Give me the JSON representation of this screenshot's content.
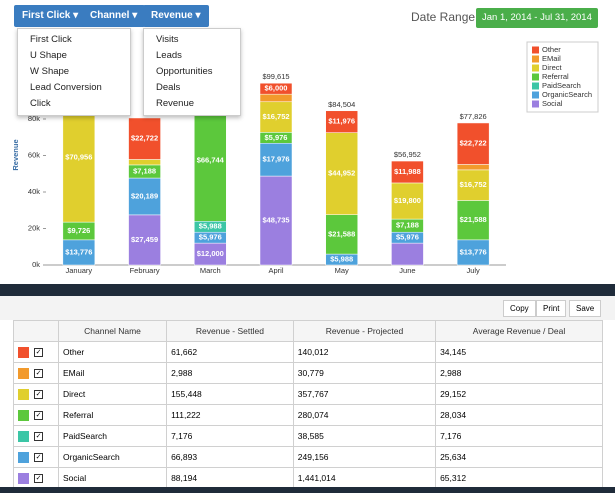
{
  "toolbar": {
    "buttons": [
      "First Click",
      "Channel",
      "Revenue"
    ],
    "date_range_label": "Date Range",
    "date_range": "Jan 1, 2014 - Jul 31, 2014"
  },
  "menus": [
    [
      "First Click",
      "U Shape",
      "W Shape",
      "Lead Conversion Click"
    ],
    [
      "Visits",
      "Leads",
      "Opportunities",
      "Deals",
      "Revenue"
    ]
  ],
  "chart_data": {
    "type": "stacked-bar",
    "y_label": "Revenue",
    "legend": "upper right",
    "categories": [
      "January",
      "February",
      "March",
      "April",
      "May",
      "June",
      "July"
    ],
    "ylim": [
      0,
      120000
    ],
    "yticks": [
      {
        "value": 0,
        "label": "0k"
      },
      {
        "value": 20000,
        "label": "20k"
      },
      {
        "value": 40000,
        "label": "40k"
      },
      {
        "value": 60000,
        "label": "60k"
      },
      {
        "value": 80000,
        "label": "80k"
      }
    ],
    "series": [
      {
        "name": "Social",
        "color": "#9b7fe0",
        "values": [
          null,
          27459,
          12000,
          48735,
          null,
          12000,
          null
        ],
        "value_labels": [
          null,
          "$27,459",
          "$12,000",
          "$48,735",
          null,
          null,
          null
        ]
      },
      {
        "name": "OrganicSearch",
        "color": "#4ea2dc",
        "values": [
          13776,
          20189,
          5976,
          17976,
          5988,
          5976,
          13776
        ],
        "value_labels": [
          "$13,776",
          "$20,189",
          "$5,976",
          "$17,976",
          "$5,988",
          "$5,976",
          "$13,776"
        ]
      },
      {
        "name": "PaidSearch",
        "color": "#3cc6a6",
        "values": [
          null,
          null,
          5988,
          null,
          null,
          null,
          null
        ],
        "value_labels": [
          null,
          null,
          "$5,988",
          null,
          null,
          null,
          null
        ]
      },
      {
        "name": "Referral",
        "color": "#5cc83c",
        "values": [
          9726,
          7188,
          66744,
          5976,
          21588,
          7188,
          21588
        ],
        "value_labels": [
          "$9,726",
          "$7,188",
          "$66,744",
          "$5,976",
          "$21,588",
          "$7,188",
          "$21,588"
        ]
      },
      {
        "name": "Direct",
        "color": "#e0cf2e",
        "values": [
          70956,
          3000,
          null,
          16752,
          44952,
          19800,
          16752
        ],
        "value_labels": [
          "$70,956",
          null,
          null,
          "$16,752",
          "$44,952",
          "$19,800",
          "$16,752"
        ]
      },
      {
        "name": "EMail",
        "color": "#f29a2c",
        "values": [
          null,
          null,
          null,
          4176,
          null,
          null,
          2988
        ],
        "value_labels": [
          null,
          null,
          null,
          null,
          null,
          null,
          null
        ]
      },
      {
        "name": "Other",
        "color": "#f1502c",
        "values": [
          null,
          22722,
          null,
          6000,
          11976,
          11988,
          22722
        ],
        "value_labels": [
          null,
          "$22,722",
          null,
          "$6,000",
          "$11,976",
          "$11,988",
          "$22,722"
        ]
      }
    ],
    "totals": [
      null,
      null,
      null,
      99615,
      84504,
      56952,
      77826
    ],
    "total_labels": [
      null,
      null,
      null,
      "$99,615",
      "$84,504",
      "$56,952",
      "$77,826"
    ]
  },
  "table_tools": [
    "Copy",
    "Print",
    "Save"
  ],
  "table": {
    "columns": [
      "Channel Name",
      "Revenue - Settled",
      "Revenue - Projected",
      "Average Revenue / Deal"
    ],
    "rows": [
      [
        "Other",
        "61,662",
        "140,012",
        "34,145"
      ],
      [
        "EMail",
        "2,988",
        "30,779",
        "2,988"
      ],
      [
        "Direct",
        "155,448",
        "357,767",
        "29,152"
      ],
      [
        "Referral",
        "111,222",
        "280,074",
        "28,034"
      ],
      [
        "PaidSearch",
        "7,176",
        "38,585",
        "7,176"
      ],
      [
        "OrganicSearch",
        "66,893",
        "249,156",
        "25,634"
      ],
      [
        "Social",
        "88,194",
        "1,441,014",
        "65,312"
      ]
    ]
  }
}
